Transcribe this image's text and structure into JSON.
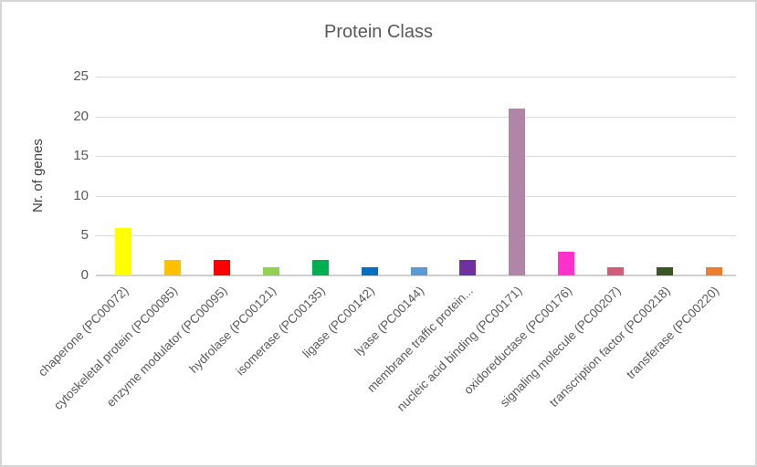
{
  "window": {
    "background": "#FFFFFF",
    "border_color": "#D5D5D5"
  },
  "chart_data": {
    "type": "bar",
    "title": "Protein Class",
    "xlabel": "",
    "ylabel": "Nr. of genes",
    "ylim": [
      0,
      25
    ],
    "yticks": [
      0,
      5,
      10,
      15,
      20,
      25
    ],
    "grid": true,
    "legend": false,
    "categories": [
      "chaperone (PC00072)",
      "cytoskeletal protein (PC00085)",
      "enzyme modulator (PC00095)",
      "hydrolase (PC00121)",
      "isomerase (PC00135)",
      "ligase (PC00142)",
      "lyase (PC00144)",
      "membrane traffic protein...",
      "nucleic acid binding (PC00171)",
      "oxidoreductase (PC00176)",
      "signaling molecule (PC00207)",
      "transcription factor (PC00218)",
      "transferase (PC00220)"
    ],
    "values": [
      6,
      2,
      2,
      1,
      2,
      1,
      1,
      2,
      21,
      3,
      1,
      1,
      1
    ],
    "bar_colors": [
      "#FFFF00",
      "#FFC000",
      "#FF0000",
      "#92D050",
      "#00B050",
      "#0070C0",
      "#5B9BD5",
      "#7030A0",
      "#B085A8",
      "#FF33CC",
      "#D25D7A",
      "#375623",
      "#ED7D31"
    ],
    "colors": {
      "title_text": "#595959",
      "tick_text": "#595959",
      "axis_label_text": "#404040",
      "gridline": "#D9D9D9",
      "axis_line": "#D0D0D0"
    }
  }
}
